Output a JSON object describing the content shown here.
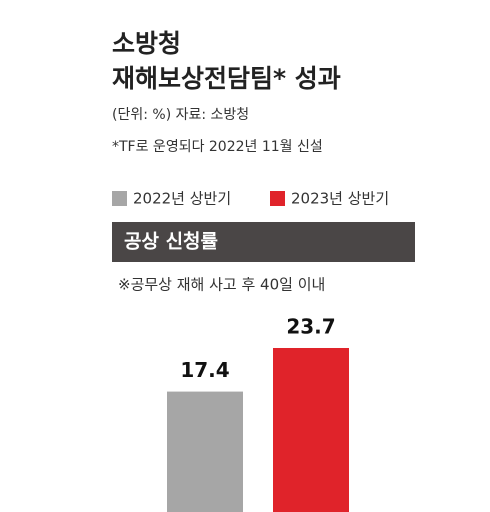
{
  "chart_data": {
    "type": "bar",
    "title_lines": [
      "소방청",
      "재해보상전담팀* 성과"
    ],
    "subtitle_lines": [
      "(단위: %) 자료: 소방청",
      "*TF로 운영되다 2022년 11월 신설"
    ],
    "section_title": "공상 신청률",
    "note": "※공무상 재해 사고 후 40일 이내",
    "categories": [
      null
    ],
    "series": [
      {
        "name": "2022년 상반기",
        "color": "#a6a6a6",
        "values": [
          17.4
        ]
      },
      {
        "name": "2023년 상반기",
        "color": "#e0232a",
        "values": [
          23.7
        ]
      }
    ],
    "ylim": [
      0,
      25
    ]
  }
}
